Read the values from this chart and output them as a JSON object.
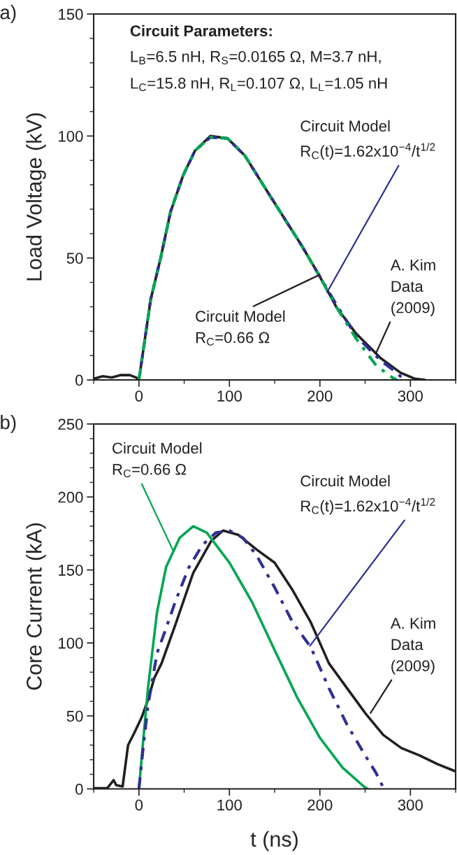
{
  "chart_data": [
    {
      "type": "line",
      "title": "a)",
      "ylabel": "Load Voltage (kV)",
      "xlim": [
        -50,
        350
      ],
      "xticks": [
        {
          "value": -50,
          "label": null
        },
        0,
        {
          "value": 50,
          "label": null
        },
        100,
        {
          "value": 150,
          "label": null
        },
        200,
        {
          "value": 250,
          "label": null
        },
        300,
        {
          "value": 350,
          "label": null
        }
      ],
      "ylim": [
        0,
        150
      ],
      "yticks": [
        0,
        {
          "value": 10,
          "label": null
        },
        {
          "value": 20,
          "label": null
        },
        {
          "value": 30,
          "label": null
        },
        {
          "value": 40,
          "label": null
        },
        50,
        {
          "value": 60,
          "label": null
        },
        {
          "value": 70,
          "label": null
        },
        {
          "value": 80,
          "label": null
        },
        {
          "value": 90,
          "label": null
        },
        100,
        {
          "value": 110,
          "label": null
        },
        {
          "value": 120,
          "label": null
        },
        {
          "value": 130,
          "label": null
        },
        {
          "value": 140,
          "label": null
        },
        150
      ],
      "grid": false,
      "series": [
        {
          "color": "#231f20",
          "line_style": "solid",
          "x": [
            -50,
            -40,
            -30,
            -20,
            -10,
            -3,
            0,
            13,
            24,
            35,
            49,
            62,
            79,
            98,
            117,
            144,
            180,
            199,
            218,
            240,
            267,
            289,
            305,
            316
          ],
          "values": [
            0.5,
            1.5,
            1,
            2,
            2,
            1,
            0,
            33,
            50,
            69,
            84,
            94,
            100,
            99,
            92,
            76,
            55,
            43,
            30,
            19,
            9,
            3,
            0.5,
            0
          ]
        },
        {
          "color": "#2e3192",
          "line_style": "dashdot",
          "x": [
            0,
            13,
            24,
            35,
            49,
            62,
            79,
            98,
            117,
            144,
            180,
            199,
            218,
            240,
            267,
            285,
            293
          ],
          "values": [
            0,
            33,
            50,
            69,
            84,
            94,
            99.5,
            99,
            92,
            76,
            55,
            43,
            31,
            18,
            8,
            3,
            0
          ]
        },
        {
          "color": "#00a651",
          "line_style": "dashdot",
          "x": [
            0,
            13,
            24,
            35,
            49,
            62,
            79,
            98,
            117,
            144,
            180,
            199,
            218,
            240,
            262,
            280,
            285
          ],
          "values": [
            0,
            33,
            50,
            69,
            84,
            94,
            99.5,
            99,
            92,
            76,
            55,
            43,
            30,
            17,
            6,
            1,
            0
          ]
        }
      ],
      "annotations": [
        "Circuit Parameters:",
        "L$_{B}$=6.5 nH, R$_{S}$=0.0165 Ω, M=3.7 nH,",
        "L$_{C}$=15.8 nH, R$_{L}$=0.107 Ω, L$_{L}$=1.05 nH",
        {
          "text": "Circuit Model\nR$_{C}$(t)=1.62x10$^{−4}$/t$^{1/2}$",
          "x": 208,
          "y": 36
        },
        {
          "text": "Circuit Model\nR$_{C}$=0.66 Ω",
          "x": 199,
          "y": 43
        },
        {
          "text": "A. Kim\nData\n(2009)",
          "x": 262,
          "y": 11
        }
      ]
    },
    {
      "type": "line",
      "title": "b)",
      "ylabel": "Core Current (kA)",
      "xlabel": "t (ns)",
      "xlim": [
        -50,
        350
      ],
      "xticks": [
        {
          "value": -50,
          "label": null
        },
        0,
        {
          "value": 50,
          "label": null
        },
        100,
        {
          "value": 150,
          "label": null
        },
        200,
        {
          "value": 250,
          "label": null
        },
        300,
        {
          "value": 350,
          "label": null
        }
      ],
      "ylim": [
        0,
        250
      ],
      "yticks": [
        0,
        {
          "value": 10,
          "label": null
        },
        {
          "value": 20,
          "label": null
        },
        {
          "value": 30,
          "label": null
        },
        {
          "value": 40,
          "label": null
        },
        50,
        {
          "value": 60,
          "label": null
        },
        {
          "value": 70,
          "label": null
        },
        {
          "value": 80,
          "label": null
        },
        {
          "value": 90,
          "label": null
        },
        100,
        {
          "value": 110,
          "label": null
        },
        {
          "value": 120,
          "label": null
        },
        {
          "value": 130,
          "label": null
        },
        {
          "value": 140,
          "label": null
        },
        150,
        {
          "value": 160,
          "label": null
        },
        {
          "value": 170,
          "label": null
        },
        {
          "value": 180,
          "label": null
        },
        {
          "value": 190,
          "label": null
        },
        200,
        {
          "value": 210,
          "label": null
        },
        {
          "value": 220,
          "label": null
        },
        {
          "value": 230,
          "label": null
        },
        {
          "value": 240,
          "label": null
        },
        250
      ],
      "grid": false,
      "series": [
        {
          "color": "#231f20",
          "line_style": "solid",
          "x": [
            -50,
            -35,
            -28,
            -25,
            -18,
            -12,
            -5,
            3,
            10,
            17,
            25,
            40,
            60,
            80,
            93,
            110,
            130,
            150,
            170,
            190,
            210,
            230,
            250,
            270,
            290,
            310,
            330,
            350
          ],
          "values": [
            0.5,
            0.5,
            6,
            2.5,
            1.7,
            30,
            38.5,
            49,
            61,
            76,
            86,
            112,
            148,
            170,
            177,
            174,
            164,
            155,
            136,
            114,
            86,
            69,
            52,
            37,
            28,
            23,
            17,
            12
          ]
        },
        {
          "color": "#00a651",
          "line_style": "solid",
          "x": [
            0,
            5,
            10,
            20,
            30,
            45,
            60,
            75,
            100,
            125,
            150,
            175,
            200,
            225,
            250,
            253
          ],
          "values": [
            0,
            35,
            69,
            121,
            152,
            172,
            180,
            175.5,
            155,
            128,
            95,
            62.5,
            35,
            14.6,
            0.9,
            0
          ]
        },
        {
          "color": "#2e3192",
          "line_style": "dashdot",
          "x": [
            0,
            5,
            10,
            20,
            30,
            40,
            55,
            70,
            85,
            100,
            115,
            130,
            150,
            170,
            190,
            210,
            230,
            250,
            262,
            270
          ],
          "values": [
            0,
            30,
            57,
            93,
            110,
            128,
            151.5,
            167,
            175.5,
            177,
            172,
            160,
            138,
            114,
            97,
            69,
            44,
            23,
            11,
            1
          ]
        }
      ],
      "annotations": [
        {
          "text": "Circuit Model\nR$_{C}$=0.66 Ω",
          "x": 38,
          "y": 163
        },
        {
          "text": "Circuit Model\nR$_{C}$(t)=1.62x10$^{−4}$/t$^{1/2}$",
          "x": 189,
          "y": 98
        },
        {
          "text": "A. Kim\nData\n(2009)",
          "x": 256,
          "y": 52
        }
      ]
    }
  ]
}
